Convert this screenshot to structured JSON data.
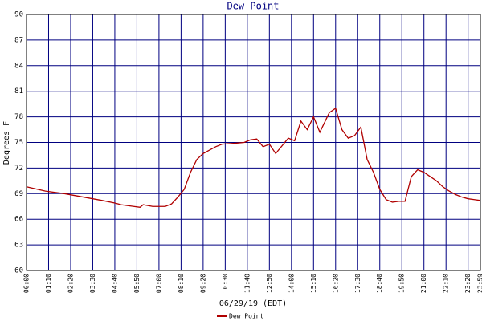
{
  "chart_data": {
    "type": "line",
    "title": "Dew Point",
    "xlabel": "06/29/19 (EDT)",
    "ylabel": "Degrees F",
    "x": [
      0,
      60,
      120,
      180,
      240,
      280,
      300,
      340,
      360,
      370,
      400,
      440,
      460,
      480,
      500,
      520,
      540,
      560,
      580,
      600,
      620,
      660,
      690,
      710,
      730,
      750,
      770,
      790,
      810,
      830,
      850,
      870,
      890,
      910,
      930,
      960,
      980,
      1000,
      1020,
      1040,
      1060,
      1080,
      1100,
      1120,
      1140,
      1160,
      1180,
      1200,
      1220,
      1240,
      1260,
      1280,
      1300,
      1320,
      1340,
      1360,
      1380,
      1400,
      1420,
      1439
    ],
    "series": [
      {
        "name": "Dew Point",
        "color": "#b00000",
        "values": [
          69.8,
          69.3,
          69.0,
          68.6,
          68.2,
          67.9,
          67.7,
          67.5,
          67.4,
          67.7,
          67.5,
          67.5,
          67.8,
          68.6,
          69.5,
          71.5,
          73.0,
          73.7,
          74.1,
          74.5,
          74.8,
          74.9,
          75.0,
          75.3,
          75.4,
          74.5,
          74.8,
          73.7,
          74.6,
          75.5,
          75.2,
          77.5,
          76.5,
          78.0,
          76.2,
          78.5,
          79.0,
          76.5,
          75.5,
          75.8,
          76.8,
          73.0,
          71.5,
          69.5,
          68.3,
          68.0,
          68.1,
          68.1,
          71.0,
          71.8,
          71.5,
          71.0,
          70.5,
          69.8,
          69.3,
          68.9,
          68.6,
          68.4,
          68.3,
          68.2
        ]
      }
    ],
    "xlim": [
      0,
      1439
    ],
    "xticks": [
      {
        "value": 0,
        "label": "00:00"
      },
      {
        "value": 70,
        "label": "01:10"
      },
      {
        "value": 140,
        "label": "02:20"
      },
      {
        "value": 210,
        "label": "03:30"
      },
      {
        "value": 280,
        "label": "04:40"
      },
      {
        "value": 350,
        "label": "05:50"
      },
      {
        "value": 420,
        "label": "07:00"
      },
      {
        "value": 490,
        "label": "08:10"
      },
      {
        "value": 560,
        "label": "09:20"
      },
      {
        "value": 630,
        "label": "10:30"
      },
      {
        "value": 700,
        "label": "11:40"
      },
      {
        "value": 770,
        "label": "12:50"
      },
      {
        "value": 840,
        "label": "14:00"
      },
      {
        "value": 910,
        "label": "15:10"
      },
      {
        "value": 980,
        "label": "16:20"
      },
      {
        "value": 1050,
        "label": "17:30"
      },
      {
        "value": 1120,
        "label": "18:40"
      },
      {
        "value": 1190,
        "label": "19:50"
      },
      {
        "value": 1260,
        "label": "21:00"
      },
      {
        "value": 1330,
        "label": "22:10"
      },
      {
        "value": 1400,
        "label": "23:20"
      },
      {
        "value": 1439,
        "label": "23:59"
      }
    ],
    "ylim": [
      60,
      90
    ],
    "yticks": [
      60,
      63,
      66,
      69,
      72,
      75,
      78,
      81,
      84,
      87,
      90
    ],
    "grid": true
  }
}
